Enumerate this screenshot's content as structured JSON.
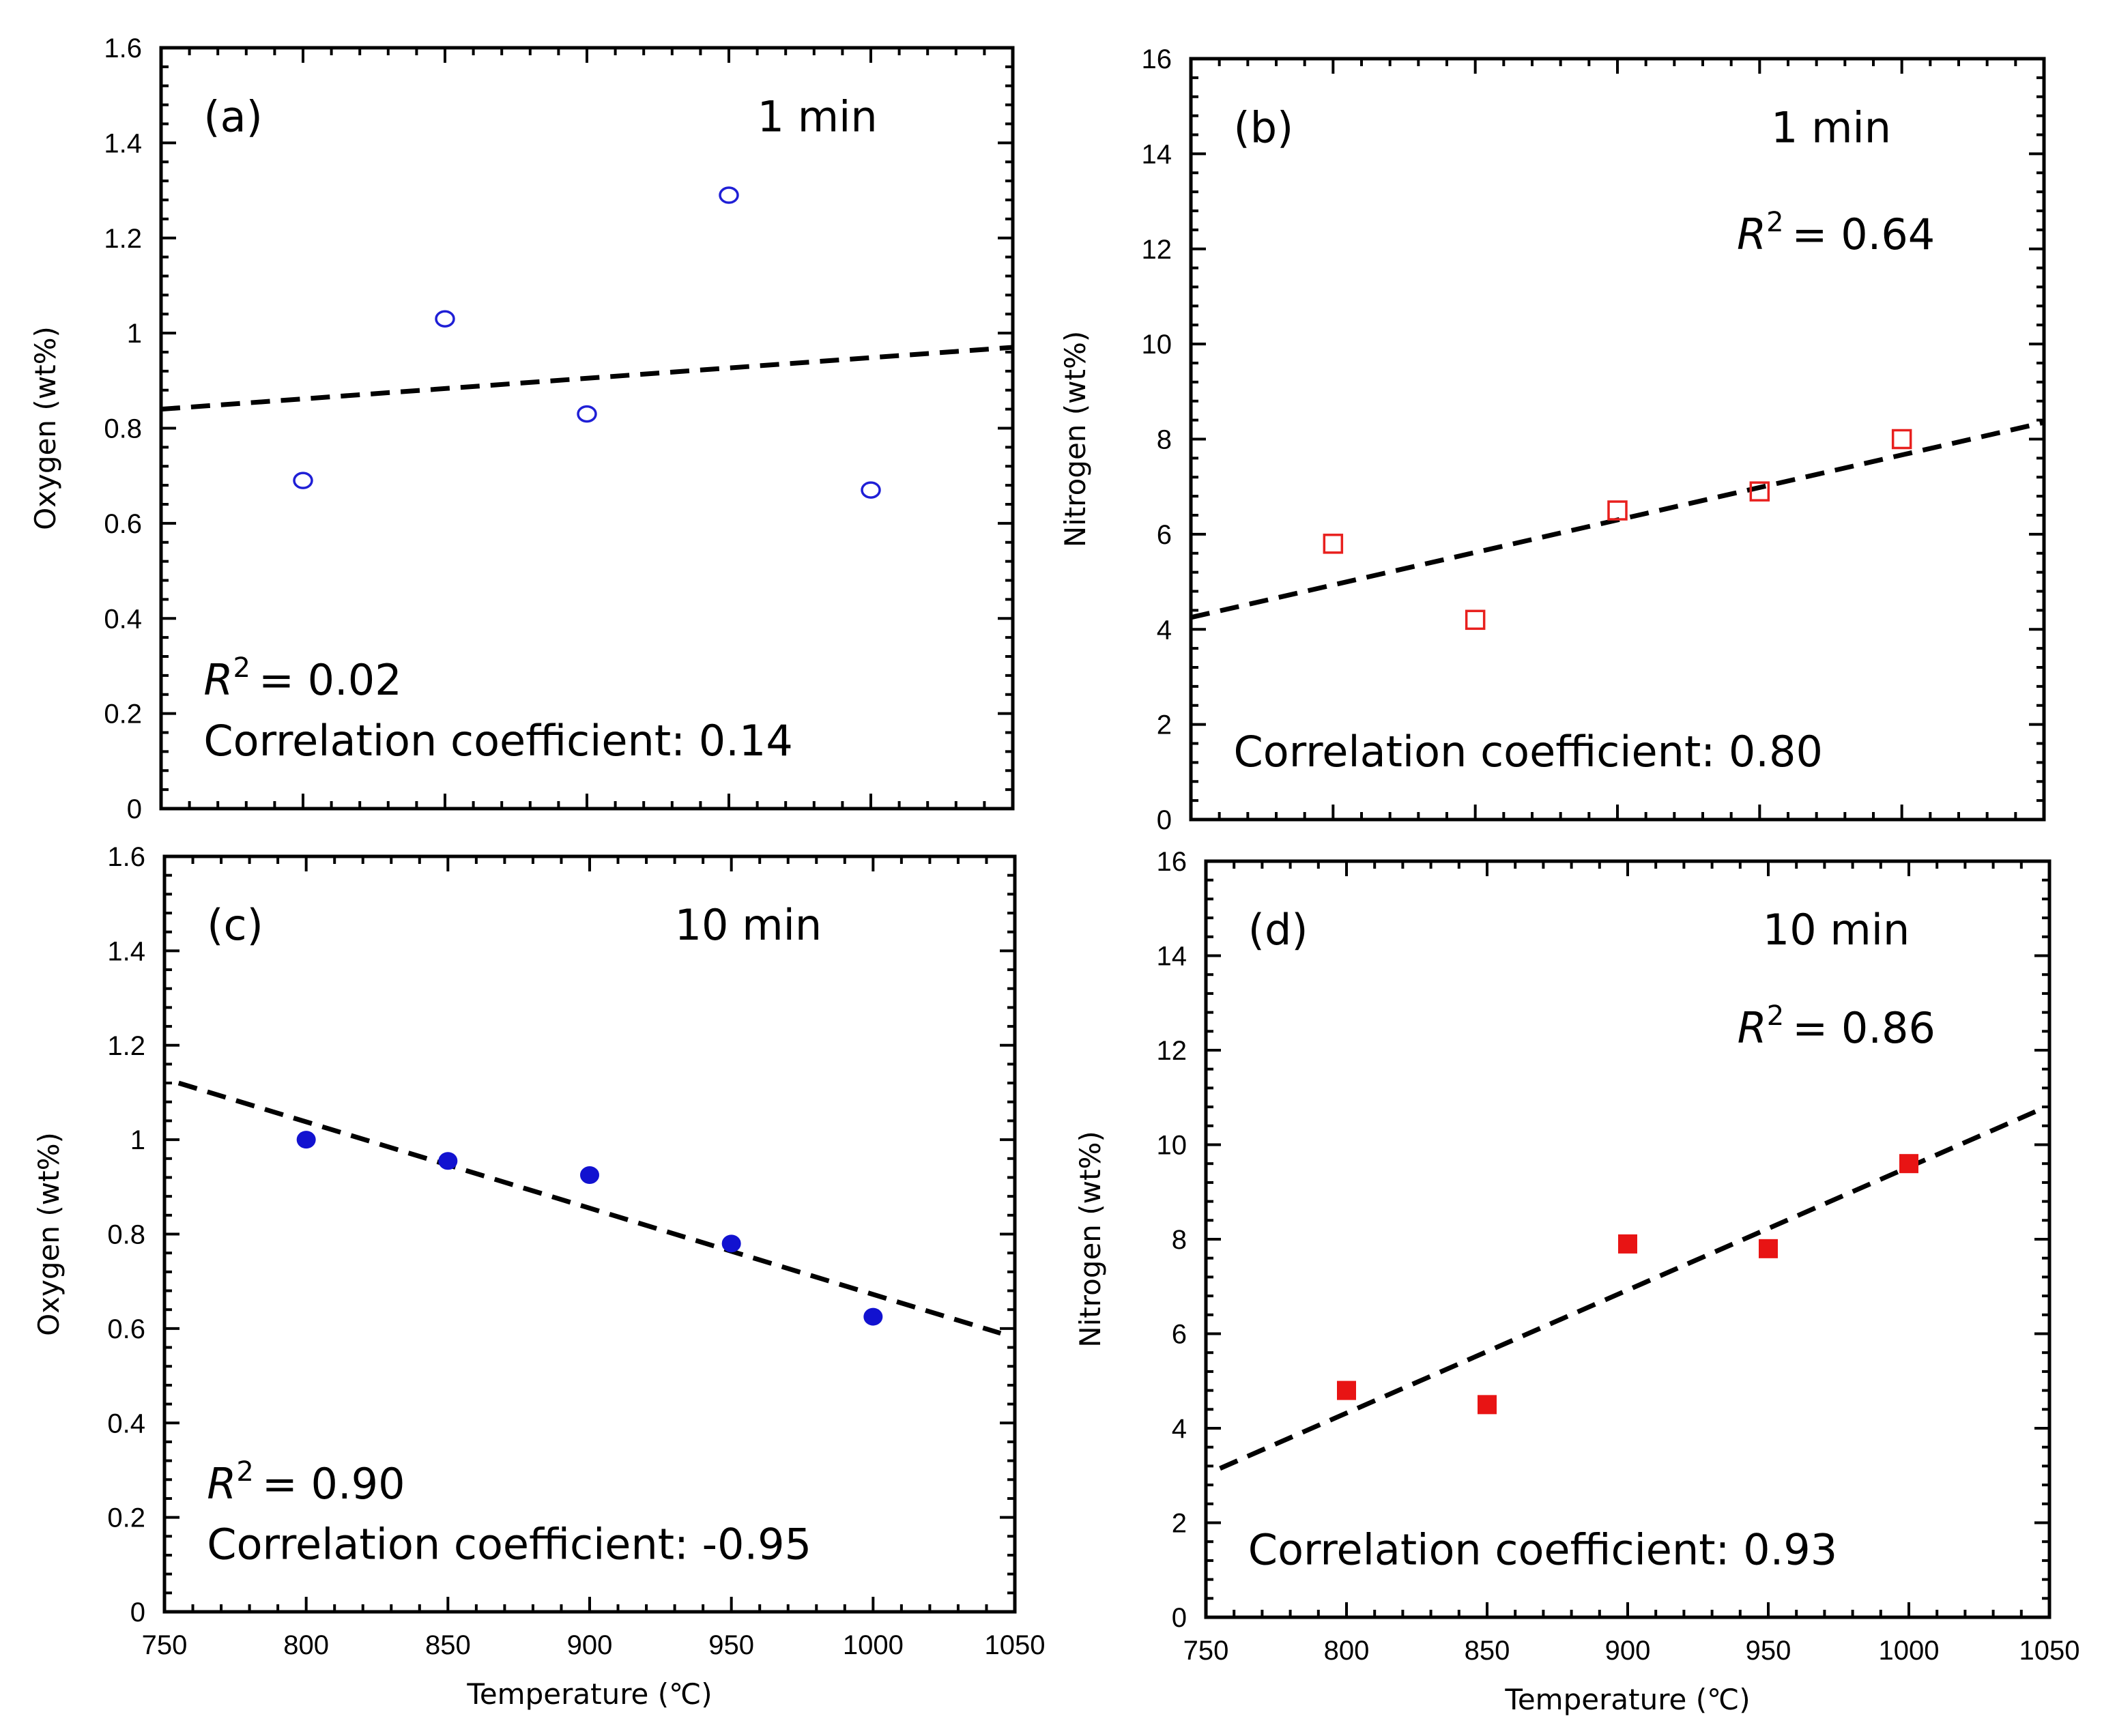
{
  "chart_data": [
    {
      "panel": "a",
      "type": "scatter",
      "ylabel": "Oxygen (wt%)",
      "xlabel": "",
      "xlim": [
        750,
        1050
      ],
      "ylim": [
        0,
        1.6
      ],
      "xticks": [
        "750",
        "800",
        "850",
        "900",
        "950",
        "1000",
        "1050"
      ],
      "yticks": [
        "0",
        "0.2",
        "0.4",
        "0.6",
        "0.8",
        "1",
        "1.2",
        "1.4",
        "1.6"
      ],
      "show_xtick_labels": false,
      "marker": "circle",
      "filled": false,
      "color": "#1f1fd6",
      "series": [
        {
          "x": [
            800,
            850,
            900,
            950,
            1000
          ],
          "y": [
            0.69,
            1.03,
            0.83,
            1.29,
            0.67
          ]
        }
      ],
      "fit": {
        "x": [
          750,
          1050
        ],
        "y": [
          0.84,
          0.97
        ]
      },
      "annotations": {
        "label": "(a)",
        "time": "1 min",
        "r2_sym": "R",
        "r2_exp": "2",
        "r2_val": "= 0.02",
        "corr": "Correlation coefficient: 0.14"
      }
    },
    {
      "panel": "b",
      "type": "scatter",
      "ylabel": "Nitrogen (wt%)",
      "xlabel": "",
      "xlim": [
        750,
        1050
      ],
      "ylim": [
        0,
        16
      ],
      "xticks": [
        "750",
        "800",
        "850",
        "900",
        "950",
        "1000",
        "1050"
      ],
      "yticks": [
        "0",
        "2",
        "4",
        "6",
        "8",
        "10",
        "12",
        "14",
        "16"
      ],
      "show_xtick_labels": false,
      "marker": "square",
      "filled": false,
      "color": "#e8201e",
      "series": [
        {
          "x": [
            800,
            850,
            900,
            950,
            1000
          ],
          "y": [
            5.8,
            4.2,
            6.5,
            6.9,
            8.0
          ]
        }
      ],
      "fit": {
        "x": [
          750,
          1050
        ],
        "y": [
          4.25,
          8.35
        ]
      },
      "annotations": {
        "label": "(b)",
        "time": "1 min",
        "r2_sym": "R",
        "r2_exp": "2",
        "r2_val": "= 0.64",
        "corr": "Correlation coefficient: 0.80"
      }
    },
    {
      "panel": "c",
      "type": "scatter",
      "ylabel": "Oxygen (wt%)",
      "xlabel": "Temperature (℃)",
      "xlim": [
        750,
        1050
      ],
      "ylim": [
        0,
        1.6
      ],
      "xticks": [
        "750",
        "800",
        "850",
        "900",
        "950",
        "1000",
        "1050"
      ],
      "yticks": [
        "0",
        "0.2",
        "0.4",
        "0.6",
        "0.8",
        "1",
        "1.2",
        "1.4",
        "1.6"
      ],
      "show_xtick_labels": true,
      "marker": "circle",
      "filled": true,
      "color": "#1212d0",
      "series": [
        {
          "x": [
            800,
            850,
            900,
            950,
            1000
          ],
          "y": [
            1.0,
            0.955,
            0.925,
            0.78,
            0.625
          ]
        }
      ],
      "fit": {
        "x": [
          755,
          1045
        ],
        "y": [
          1.12,
          0.59
        ]
      },
      "annotations": {
        "label": "(c)",
        "time": "10 min",
        "r2_sym": "R",
        "r2_exp": "2",
        "r2_val": "= 0.90",
        "corr": "Correlation coefficient: -0.95"
      }
    },
    {
      "panel": "d",
      "type": "scatter",
      "ylabel": "Nitrogen (wt%)",
      "xlabel": "Temperature (℃)",
      "xlim": [
        750,
        1050
      ],
      "ylim": [
        0,
        16
      ],
      "xticks": [
        "750",
        "800",
        "850",
        "900",
        "950",
        "1000",
        "1050"
      ],
      "yticks": [
        "0",
        "2",
        "4",
        "6",
        "8",
        "10",
        "12",
        "14",
        "16"
      ],
      "show_xtick_labels": true,
      "marker": "square",
      "filled": true,
      "color": "#e81414",
      "series": [
        {
          "x": [
            800,
            850,
            900,
            950,
            1000
          ],
          "y": [
            4.8,
            4.5,
            7.9,
            7.8,
            9.6
          ]
        }
      ],
      "fit": {
        "x": [
          755,
          1045
        ],
        "y": [
          3.15,
          10.7
        ]
      },
      "annotations": {
        "label": "(d)",
        "time": "10 min",
        "r2_sym": "R",
        "r2_exp": "2",
        "r2_val": "= 0.86",
        "corr": "Correlation coefficient: 0.93"
      }
    }
  ]
}
